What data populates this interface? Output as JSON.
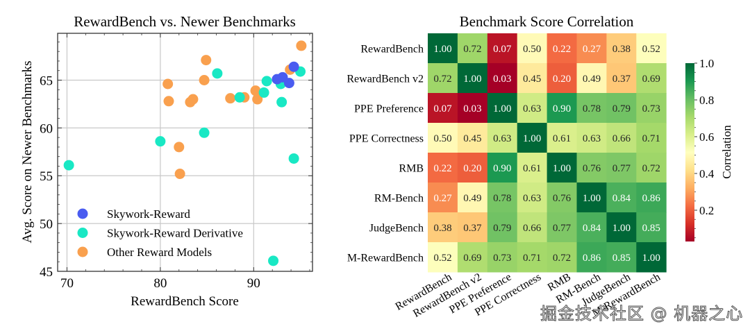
{
  "chart_data": [
    {
      "type": "scatter",
      "title": "RewardBench vs. Newer Benchmarks",
      "xlabel": "RewardBench Score",
      "ylabel": "Avg. Score on Newer Benchmarks",
      "xlim": [
        69.0,
        96.3
      ],
      "ylim": [
        45,
        69.9
      ],
      "xticks": [
        70,
        80,
        90
      ],
      "yticks": [
        45,
        50,
        55,
        60,
        65
      ],
      "grid": true,
      "legend_position": "bottom-left",
      "series": [
        {
          "name": "Skywork-Reward",
          "color": "#4a5cf0",
          "points": [
            [
              94.3,
              66.4
            ],
            [
              92.5,
              65.1
            ],
            [
              93.1,
              65.3
            ],
            [
              93.8,
              64.7
            ]
          ]
        },
        {
          "name": "Skywork-Reward Derivative",
          "color": "#19e8c4",
          "points": [
            [
              70.2,
              56.1
            ],
            [
              80.0,
              58.6
            ],
            [
              84.7,
              59.5
            ],
            [
              86.1,
              65.7
            ],
            [
              88.5,
              63.2
            ],
            [
              91.1,
              63.7
            ],
            [
              91.4,
              64.9
            ],
            [
              92.9,
              64.6
            ],
            [
              93.0,
              62.7
            ],
            [
              95.0,
              65.9
            ],
            [
              94.3,
              56.8
            ],
            [
              92.1,
              46.1
            ]
          ]
        },
        {
          "name": "Other Reward Models",
          "color": "#f9a04e",
          "points": [
            [
              80.8,
              64.6
            ],
            [
              80.9,
              62.8
            ],
            [
              82.0,
              58.0
            ],
            [
              82.1,
              55.2
            ],
            [
              83.2,
              62.7
            ],
            [
              83.5,
              63.0
            ],
            [
              84.7,
              65.0
            ],
            [
              84.9,
              67.1
            ],
            [
              87.5,
              63.1
            ],
            [
              89.0,
              63.2
            ],
            [
              90.2,
              63.9
            ],
            [
              90.4,
              63.0
            ],
            [
              93.9,
              66.1
            ],
            [
              95.1,
              68.6
            ]
          ]
        }
      ]
    },
    {
      "type": "heatmap",
      "title": "Benchmark Score Correlation",
      "labels": [
        "RewardBench",
        "RewardBench v2",
        "PPE Preference",
        "PPE Correctness",
        "RMB",
        "RM-Bench",
        "JudgeBench",
        "M-RewardBench"
      ],
      "values": [
        [
          1.0,
          0.72,
          0.07,
          0.5,
          0.22,
          0.27,
          0.38,
          0.52
        ],
        [
          0.72,
          1.0,
          0.03,
          0.45,
          0.2,
          0.49,
          0.37,
          0.69
        ],
        [
          0.07,
          0.03,
          1.0,
          0.63,
          0.9,
          0.78,
          0.79,
          0.73
        ],
        [
          0.5,
          0.45,
          0.63,
          1.0,
          0.61,
          0.63,
          0.66,
          0.71
        ],
        [
          0.22,
          0.2,
          0.9,
          0.61,
          1.0,
          0.76,
          0.77,
          0.72
        ],
        [
          0.27,
          0.49,
          0.78,
          0.63,
          0.76,
          1.0,
          0.84,
          0.86
        ],
        [
          0.38,
          0.37,
          0.79,
          0.66,
          0.77,
          0.84,
          1.0,
          0.85
        ],
        [
          0.52,
          0.69,
          0.73,
          0.71,
          0.72,
          0.86,
          0.85,
          1.0
        ]
      ],
      "colormap": "RdYlGn",
      "vmin": 0.03,
      "vmax": 1.0,
      "colorbar": {
        "label": "Correlation",
        "ticks": [
          "0.2",
          "0.4",
          "0.6",
          "0.8",
          "1.0"
        ],
        "tick_values": [
          0.2,
          0.4,
          0.6,
          0.8,
          1.0
        ],
        "position": "right"
      }
    }
  ],
  "watermark": "掘金技术社区 @ 机器之心"
}
